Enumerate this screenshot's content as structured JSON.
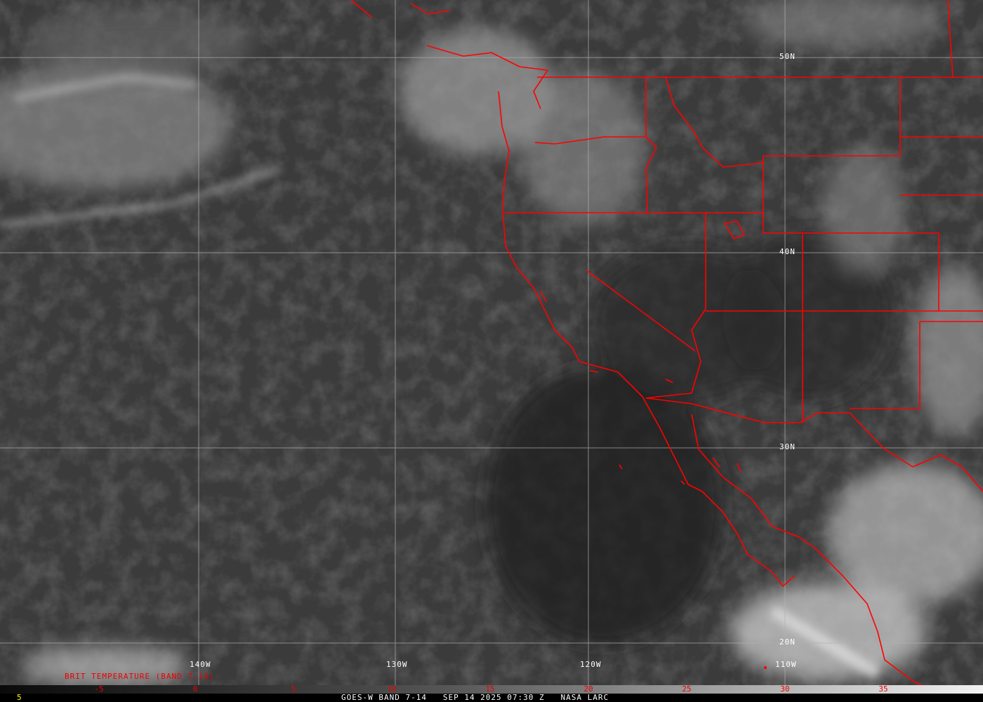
{
  "map": {
    "lat_labels": [
      "50N",
      "40N",
      "30N",
      "20N"
    ],
    "lon_labels": [
      "140W",
      "130W",
      "120W",
      "110W"
    ],
    "border_color": "#ff0000",
    "grid_color": "#b0b0b0"
  },
  "legend": {
    "title": "BRIT TEMPERATURE (BAND 7-14)",
    "ticks": [
      "-5",
      "0",
      "5",
      "10",
      "15",
      "20",
      "25",
      "30",
      "35"
    ],
    "tick_color": "#ee0000"
  },
  "footer": {
    "frame": "5",
    "caption": "GOES-W BAND 7-14   SEP 14 2025 07:30 Z   NASA LARC"
  }
}
